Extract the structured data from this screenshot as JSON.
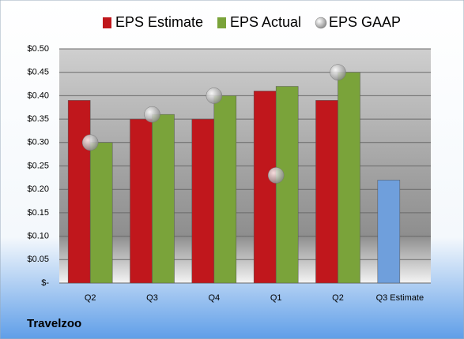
{
  "chart_data": {
    "type": "bar",
    "title": "Travelzoo",
    "categories": [
      "Q2",
      "Q3",
      "Q4",
      "Q1",
      "Q2",
      "Q3 Estimate"
    ],
    "series": [
      {
        "name": "EPS Estimate",
        "type": "bar",
        "color": "#c0171c",
        "colors": [
          "#c0171c",
          "#c0171c",
          "#c0171c",
          "#c0171c",
          "#c0171c",
          "#6f9fdc"
        ],
        "values": [
          0.39,
          0.35,
          0.35,
          0.41,
          0.39,
          0.22
        ]
      },
      {
        "name": "EPS Actual",
        "type": "bar",
        "color": "#7aa33a",
        "values": [
          0.3,
          0.36,
          0.4,
          0.42,
          0.45,
          null
        ]
      },
      {
        "name": "EPS GAAP",
        "type": "scatter",
        "color": "#b8b8b8",
        "values": [
          0.3,
          0.36,
          0.4,
          0.23,
          0.45,
          null
        ]
      }
    ],
    "ylim": [
      0,
      0.5
    ],
    "yticks": [
      {
        "value": 0,
        "label": "$-"
      },
      {
        "value": 0.05,
        "label": "$0.05"
      },
      {
        "value": 0.1,
        "label": "$0.10"
      },
      {
        "value": 0.15,
        "label": "$0.15"
      },
      {
        "value": 0.2,
        "label": "$0.20"
      },
      {
        "value": 0.25,
        "label": "$0.25"
      },
      {
        "value": 0.3,
        "label": "$0.30"
      },
      {
        "value": 0.35,
        "label": "$0.35"
      },
      {
        "value": 0.4,
        "label": "$0.40"
      },
      {
        "value": 0.45,
        "label": "$0.45"
      },
      {
        "value": 0.5,
        "label": "$0.50"
      }
    ],
    "grid": true
  }
}
